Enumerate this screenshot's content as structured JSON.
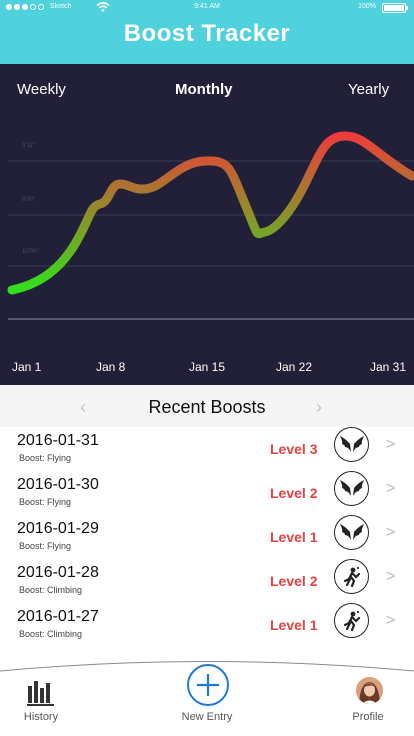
{
  "status_bar": {
    "carrier": "Sketch",
    "time": "9:41 AM",
    "battery": "100%"
  },
  "app": {
    "title": "Boost Tracker"
  },
  "periods": {
    "weekly": "Weekly",
    "monthly": "Monthly",
    "yearly": "Yearly"
  },
  "chart_data": {
    "type": "line",
    "x": [
      "Jan 1",
      "Jan 8",
      "Jan 15",
      "Jan 22",
      "Jan 31"
    ],
    "gradient_low": "#2ee41c",
    "gradient_high": "#ef3b3b",
    "axis_text": [
      "5'11\"",
      "6'00\"",
      "10'00\""
    ]
  },
  "recent_boosts": {
    "title": "Recent Boosts",
    "prev": "‹",
    "next": "›",
    "items": [
      {
        "date": "2016-01-31",
        "boost": "Boost: Flying",
        "level": "Level 3",
        "icon": "wings-icon"
      },
      {
        "date": "2016-01-30",
        "boost": "Boost: Flying",
        "level": "Level 2",
        "icon": "wings-icon"
      },
      {
        "date": "2016-01-29",
        "boost": "Boost: Flying",
        "level": "Level 1",
        "icon": "wings-icon"
      },
      {
        "date": "2016-01-28",
        "boost": "Boost: Climbing",
        "level": "Level 2",
        "icon": "climber-icon"
      },
      {
        "date": "2016-01-27",
        "boost": "Boost: Climbing",
        "level": "Level 1",
        "icon": "climber-icon"
      }
    ]
  },
  "tabbar": {
    "history": "History",
    "new_entry": "New Entry",
    "profile": "Profile"
  },
  "colors": {
    "header": "#4fd1de",
    "chart_bg": "#212038",
    "level": "#e84040",
    "accent": "#1e7ad8"
  }
}
